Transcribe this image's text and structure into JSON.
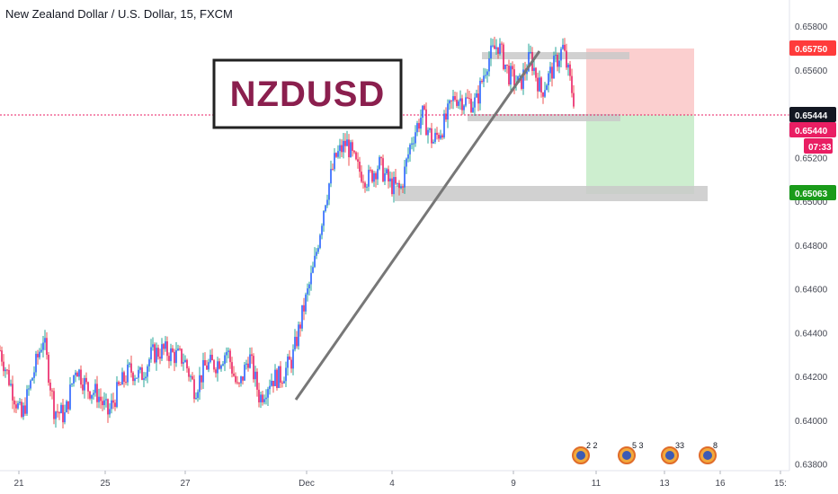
{
  "header": {
    "title": "New Zealand Dollar / U.S. Dollar, 15, FXCM"
  },
  "annotation": {
    "label": "NZDUSD"
  },
  "colors": {
    "up": "#26a69a",
    "down": "#ef5350",
    "candle_body_up": "#2962ff",
    "candle_body_down": "#e91e63",
    "stop_zone": "#fbcfcf",
    "target_zone": "#cdeecf",
    "stop_badge": "#ff3b3b",
    "target_badge": "#1a9b1a",
    "current_badge": "#131722",
    "price_badge": "#e91e63",
    "zone_gray": "#c9c9c9",
    "trend_line": "#777777",
    "label_border": "#222222",
    "label_text": "#8b1f4e",
    "dotted_line": "#e91e63"
  },
  "chart_data": {
    "type": "candlestick",
    "title": "New Zealand Dollar / U.S. Dollar, 15, FXCM",
    "ylim": [
      0.6377,
      0.6592
    ],
    "y_ticks": [
      "0.65800",
      "0.65600",
      "0.65200",
      "0.65000",
      "0.64800",
      "0.64600",
      "0.64400",
      "0.64200",
      "0.64000",
      "0.63800"
    ],
    "x_ticks": [
      "21",
      "25",
      "27",
      "Dec",
      "4",
      "9",
      "11",
      "13",
      "16",
      "15:"
    ],
    "series_points": [
      [
        0,
        0.6432
      ],
      [
        1,
        0.6416
      ],
      [
        2,
        0.6401
      ],
      [
        3,
        0.642
      ],
      [
        4,
        0.6438
      ],
      [
        5,
        0.6405
      ],
      [
        6,
        0.6402
      ],
      [
        7,
        0.6425
      ],
      [
        8,
        0.6415
      ],
      [
        9,
        0.6412
      ],
      [
        10,
        0.6403
      ],
      [
        11,
        0.6415
      ],
      [
        12,
        0.6423
      ],
      [
        13,
        0.642
      ],
      [
        14,
        0.643
      ],
      [
        15,
        0.6432
      ],
      [
        16,
        0.643
      ],
      [
        17,
        0.6428
      ],
      [
        18,
        0.6414
      ],
      [
        19,
        0.6425
      ],
      [
        20,
        0.6426
      ],
      [
        21,
        0.6432
      ],
      [
        22,
        0.6413
      ],
      [
        23,
        0.643
      ],
      [
        24,
        0.641
      ],
      [
        25,
        0.6419
      ],
      [
        26,
        0.642
      ],
      [
        27,
        0.6428
      ],
      [
        28,
        0.645
      ],
      [
        29,
        0.647
      ],
      [
        30,
        0.65
      ],
      [
        31,
        0.652
      ],
      [
        32,
        0.6527
      ],
      [
        33,
        0.6515
      ],
      [
        34,
        0.651
      ],
      [
        35,
        0.6517
      ],
      [
        36,
        0.6508
      ],
      [
        37,
        0.6505
      ],
      [
        38,
        0.6528
      ],
      [
        39,
        0.654
      ],
      [
        40,
        0.6527
      ],
      [
        41,
        0.6535
      ],
      [
        42,
        0.6548
      ],
      [
        43,
        0.6546
      ],
      [
        44,
        0.6545
      ],
      [
        45,
        0.6564
      ],
      [
        46,
        0.6572
      ],
      [
        47,
        0.6558
      ],
      [
        48,
        0.6553
      ],
      [
        49,
        0.6566
      ],
      [
        50,
        0.655
      ],
      [
        51,
        0.656
      ],
      [
        52,
        0.657
      ],
      [
        53,
        0.6547
      ]
    ],
    "levels": [
      {
        "label": "0.65750",
        "value": 0.6575,
        "kind": "stop"
      },
      {
        "label": "0.65444",
        "value": 0.65444,
        "kind": "current"
      },
      {
        "label": "0.65440",
        "value": 0.6544,
        "kind": "price"
      },
      {
        "label": "07:33",
        "value": 0.6538,
        "kind": "countdown"
      },
      {
        "label": "0.65063",
        "value": 0.65063,
        "kind": "target"
      }
    ],
    "trend_line": {
      "from": [
        0.6409,
        "Nov 30"
      ],
      "to": [
        0.6575,
        "Dec 9"
      ]
    },
    "zones": [
      {
        "label": "resistance",
        "high": 0.6574,
        "low": 0.6571
      },
      {
        "label": "entry",
        "high": 0.65455,
        "low": 0.65425
      },
      {
        "label": "support",
        "high": 0.6508,
        "low": 0.6504
      }
    ],
    "events": [
      "2 2",
      "5",
      "3",
      "33",
      "8"
    ]
  }
}
